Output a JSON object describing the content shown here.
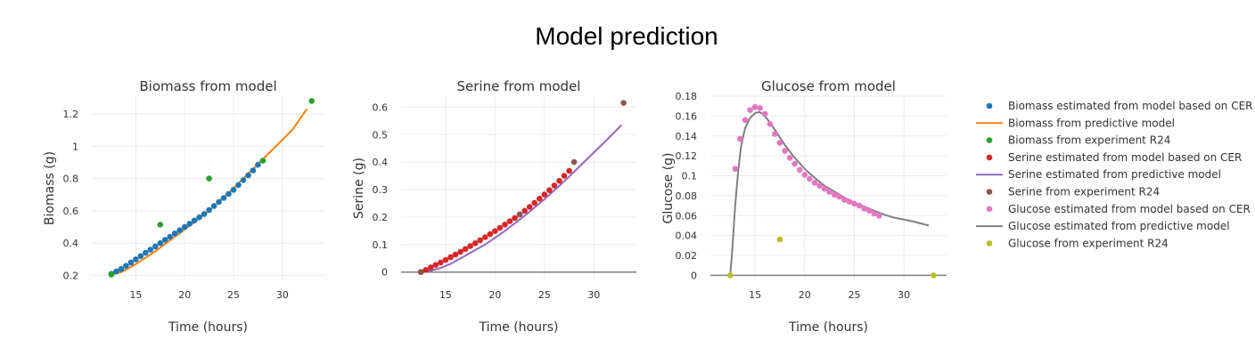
{
  "figure": {
    "title": "Model prediction"
  },
  "chart_data": [
    {
      "type": "scatter",
      "title": "Biomass from model",
      "xlabel": "Time (hours)",
      "ylabel": "Biomass (g)",
      "xlim": [
        10.5,
        34.3
      ],
      "ylim": [
        0.17,
        1.31
      ],
      "xticks": [
        15,
        20,
        25,
        30
      ],
      "yticks": [
        0.2,
        0.4,
        0.6,
        0.8,
        1,
        1.2
      ],
      "ytick_labels": [
        "0.2",
        "0.4",
        "0.6",
        "0.8",
        "1",
        "1.2"
      ],
      "zeroline": false,
      "series": [
        {
          "name": "Biomass estimated from model based on CER",
          "mode": "markers",
          "color": "#1f77b4",
          "x": [
            12.5,
            13.0,
            13.5,
            14.0,
            14.5,
            15.0,
            15.5,
            16.0,
            16.5,
            17.0,
            17.5,
            18.0,
            18.5,
            19.0,
            19.5,
            20.0,
            20.5,
            21.0,
            21.5,
            22.0,
            22.5,
            23.0,
            23.5,
            24.0,
            24.5,
            25.0,
            25.5,
            26.0,
            26.5,
            27.0,
            27.5
          ],
          "y": [
            0.21,
            0.225,
            0.24,
            0.26,
            0.28,
            0.3,
            0.32,
            0.34,
            0.36,
            0.38,
            0.4,
            0.42,
            0.44,
            0.46,
            0.48,
            0.5,
            0.52,
            0.54,
            0.56,
            0.58,
            0.605,
            0.63,
            0.655,
            0.68,
            0.705,
            0.73,
            0.76,
            0.79,
            0.82,
            0.85,
            0.885
          ]
        },
        {
          "name": "Biomass from predictive model",
          "mode": "lines",
          "color": "#ff7f0e",
          "x": [
            12.5,
            13.5,
            15.0,
            17.0,
            19.0,
            21.0,
            23.0,
            25.0,
            27.0,
            29.0,
            31.0,
            32.5
          ],
          "y": [
            0.205,
            0.22,
            0.27,
            0.35,
            0.44,
            0.53,
            0.63,
            0.74,
            0.86,
            0.98,
            1.1,
            1.23
          ]
        },
        {
          "name": "Biomass from experiment R24",
          "mode": "markers",
          "color": "#2ca02c",
          "x": [
            12.5,
            17.5,
            22.5,
            28.0,
            33.0
          ],
          "y": [
            0.205,
            0.515,
            0.8,
            0.91,
            1.28
          ]
        }
      ]
    },
    {
      "type": "scatter",
      "title": "Serine from model",
      "xlabel": "Time (hours)",
      "ylabel": "Serine (g)",
      "xlim": [
        10.5,
        34.3
      ],
      "ylim": [
        -0.03,
        0.64
      ],
      "xticks": [
        15,
        20,
        25,
        30
      ],
      "yticks": [
        0,
        0.1,
        0.2,
        0.3,
        0.4,
        0.5,
        0.6
      ],
      "ytick_labels": [
        "0",
        "0.1",
        "0.2",
        "0.3",
        "0.4",
        "0.5",
        "0.6"
      ],
      "zeroline": true,
      "series": [
        {
          "name": "Serine estimated from model based on CER",
          "mode": "markers",
          "color": "#d62728",
          "x": [
            12.5,
            13.0,
            13.5,
            14.0,
            14.5,
            15.0,
            15.5,
            16.0,
            16.5,
            17.0,
            17.5,
            18.0,
            18.5,
            19.0,
            19.5,
            20.0,
            20.5,
            21.0,
            21.5,
            22.0,
            22.5,
            23.0,
            23.5,
            24.0,
            24.5,
            25.0,
            25.5,
            26.0,
            26.5,
            27.0,
            27.5
          ],
          "y": [
            0.0,
            0.008,
            0.017,
            0.026,
            0.035,
            0.044,
            0.054,
            0.064,
            0.074,
            0.084,
            0.095,
            0.105,
            0.116,
            0.127,
            0.138,
            0.149,
            0.161,
            0.173,
            0.185,
            0.197,
            0.21,
            0.223,
            0.237,
            0.252,
            0.267,
            0.282,
            0.298,
            0.315,
            0.332,
            0.35,
            0.368
          ]
        },
        {
          "name": "Serine estimated from predictive model",
          "mode": "lines",
          "color": "#9467bd",
          "x": [
            12.5,
            13.5,
            14.5,
            15.5,
            17.0,
            19.0,
            21.0,
            23.0,
            25.0,
            27.0,
            29.0,
            31.0,
            32.8
          ],
          "y": [
            0.0,
            0.005,
            0.015,
            0.03,
            0.06,
            0.1,
            0.15,
            0.205,
            0.265,
            0.33,
            0.4,
            0.47,
            0.535
          ]
        },
        {
          "name": "Serine from experiment R24",
          "mode": "markers",
          "color": "#8c564b",
          "x": [
            12.5,
            22.5,
            28.0,
            33.0
          ],
          "y": [
            0.0,
            0.21,
            0.4,
            0.615
          ]
        }
      ]
    },
    {
      "type": "scatter",
      "title": "Glucose from model",
      "xlabel": "Time (hours)",
      "ylabel": "Glucose (g)",
      "xlim": [
        10.5,
        34.3
      ],
      "ylim": [
        -0.005,
        0.18
      ],
      "xticks": [
        15,
        20,
        25,
        30
      ],
      "yticks": [
        0,
        0.02,
        0.04,
        0.06,
        0.08,
        0.1,
        0.12,
        0.14,
        0.16,
        0.18
      ],
      "ytick_labels": [
        "0",
        "0.02",
        "0.04",
        "0.06",
        "0.08",
        "0.1",
        "0.12",
        "0.14",
        "0.16",
        "0.18"
      ],
      "zeroline": true,
      "series": [
        {
          "name": "Glucose estimated from model based on CER",
          "mode": "markers",
          "color": "#e377c2",
          "x": [
            13.0,
            13.5,
            14.0,
            14.5,
            15.0,
            15.5,
            16.0,
            16.5,
            17.0,
            17.5,
            18.0,
            18.5,
            19.0,
            19.5,
            20.0,
            20.5,
            21.0,
            21.5,
            22.0,
            22.5,
            23.0,
            23.5,
            24.0,
            24.5,
            25.0,
            25.5,
            26.0,
            26.5,
            27.0,
            27.5
          ],
          "y": [
            0.107,
            0.137,
            0.156,
            0.166,
            0.169,
            0.168,
            0.162,
            0.152,
            0.142,
            0.133,
            0.125,
            0.118,
            0.112,
            0.106,
            0.101,
            0.097,
            0.093,
            0.09,
            0.087,
            0.084,
            0.081,
            0.079,
            0.076,
            0.074,
            0.072,
            0.07,
            0.067,
            0.065,
            0.062,
            0.06
          ]
        },
        {
          "name": "Glucose estimated from predictive model",
          "mode": "lines",
          "color": "#7f7f7f",
          "x": [
            12.5,
            12.7,
            13.0,
            13.3,
            13.6,
            14.0,
            14.5,
            15.0,
            15.4,
            15.8,
            16.3,
            17.0,
            18.0,
            19.0,
            20.0,
            21.0,
            22.0,
            23.0,
            24.0,
            25.0,
            26.0,
            27.0,
            28.0,
            29.0,
            30.0,
            31.0,
            32.5
          ],
          "y": [
            0.0,
            0.025,
            0.07,
            0.105,
            0.13,
            0.148,
            0.158,
            0.163,
            0.164,
            0.162,
            0.156,
            0.146,
            0.131,
            0.118,
            0.107,
            0.098,
            0.09,
            0.084,
            0.078,
            0.073,
            0.069,
            0.065,
            0.061,
            0.058,
            0.056,
            0.054,
            0.05
          ]
        },
        {
          "name": "Glucose from experiment R24",
          "mode": "markers",
          "color": "#bcbd22",
          "x": [
            12.5,
            17.5,
            33.0
          ],
          "y": [
            0.0,
            0.036,
            0.0
          ]
        }
      ]
    }
  ],
  "legend": {
    "placement": "right",
    "items": [
      {
        "label": "Biomass estimated from model based on CER",
        "symbol": "marker",
        "color": "#1f77b4"
      },
      {
        "label": "Biomass from predictive model",
        "symbol": "line",
        "color": "#ff7f0e"
      },
      {
        "label": "Biomass from experiment R24",
        "symbol": "marker",
        "color": "#2ca02c"
      },
      {
        "label": "Serine estimated from model based on CER",
        "symbol": "marker",
        "color": "#d62728"
      },
      {
        "label": "Serine estimated from predictive model",
        "symbol": "line",
        "color": "#9467bd"
      },
      {
        "label": "Serine from experiment R24",
        "symbol": "marker",
        "color": "#8c564b"
      },
      {
        "label": "Glucose estimated from model based on CER",
        "symbol": "marker",
        "color": "#e377c2"
      },
      {
        "label": "Glucose estimated from predictive model",
        "symbol": "line",
        "color": "#7f7f7f"
      },
      {
        "label": "Glucose from experiment R24",
        "symbol": "marker",
        "color": "#bcbd22"
      }
    ]
  }
}
